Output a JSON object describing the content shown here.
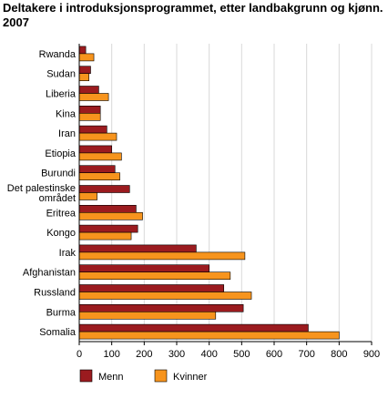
{
  "chart_data": {
    "type": "bar",
    "orientation": "horizontal",
    "title": "Deltakere i introduksjonsprogrammet, etter landbakgrunn og kjønn. 2007",
    "xlabel": "",
    "ylabel": "",
    "categories": [
      "Rwanda",
      "Sudan",
      "Liberia",
      "Kina",
      "Iran",
      "Etiopia",
      "Burundi",
      "Det palestinske området",
      "Eritrea",
      "Kongo",
      "Irak",
      "Afghanistan",
      "Russland",
      "Burma",
      "Somalia"
    ],
    "category_lines": [
      [
        "Rwanda"
      ],
      [
        "Sudan"
      ],
      [
        "Liberia"
      ],
      [
        "Kina"
      ],
      [
        "Iran"
      ],
      [
        "Etiopia"
      ],
      [
        "Burundi"
      ],
      [
        "Det palestinske",
        "området"
      ],
      [
        "Eritrea"
      ],
      [
        "Kongo"
      ],
      [
        "Irak"
      ],
      [
        "Afghanistan"
      ],
      [
        "Russland"
      ],
      [
        "Burma"
      ],
      [
        "Somalia"
      ]
    ],
    "series": [
      {
        "name": "Menn",
        "color": "#9b1b1f",
        "values": [
          20,
          35,
          60,
          65,
          85,
          100,
          110,
          155,
          175,
          180,
          360,
          400,
          445,
          505,
          705
        ]
      },
      {
        "name": "Kvinner",
        "color": "#f7941d",
        "values": [
          45,
          30,
          90,
          65,
          115,
          130,
          125,
          55,
          195,
          160,
          510,
          465,
          530,
          420,
          800
        ]
      }
    ],
    "xlim": [
      0,
      900
    ],
    "xticks": [
      "0",
      "100",
      "200",
      "300",
      "400",
      "500",
      "600",
      "700",
      "800",
      "900"
    ],
    "grid": true,
    "legend_position": "bottom"
  }
}
